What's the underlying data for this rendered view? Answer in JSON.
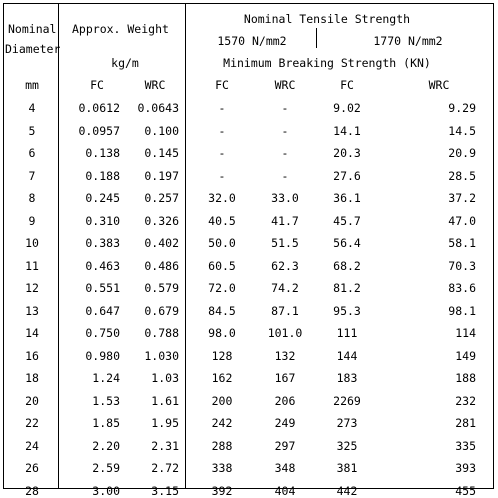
{
  "headers": {
    "nominal_line1": "Nominal",
    "diameter_line2": "Diameter",
    "mm": "mm",
    "approx_weight": "Approx. Weight",
    "kgm": "kg/m",
    "weight_fc": "FC",
    "weight_wrc": "WRC",
    "nominal_tensile": "Nominal Tensile Strength",
    "grade_1570": "1570 N/mm2",
    "grade_1770": "1770 N/mm2",
    "min_breaking": "Minimum Breaking Strength (KN)",
    "fc_1570": "FC",
    "wrc_1570": "WRC",
    "fc_1770": "FC",
    "wrc_1770": "WRC"
  },
  "rows": [
    [
      "4",
      "0.0612",
      "0.0643",
      "-",
      "-",
      "9.02",
      "9.29"
    ],
    [
      "5",
      "0.0957",
      "0.100",
      "-",
      "-",
      "14.1",
      "14.5"
    ],
    [
      "6",
      "0.138",
      "0.145",
      "-",
      "-",
      "20.3",
      "20.9"
    ],
    [
      "7",
      "0.188",
      "0.197",
      "-",
      "-",
      "27.6",
      "28.5"
    ],
    [
      "8",
      "0.245",
      "0.257",
      "32.0",
      "33.0",
      "36.1",
      "37.2"
    ],
    [
      "9",
      "0.310",
      "0.326",
      "40.5",
      "41.7",
      "45.7",
      "47.0"
    ],
    [
      "10",
      "0.383",
      "0.402",
      "50.0",
      "51.5",
      "56.4",
      "58.1"
    ],
    [
      "11",
      "0.463",
      "0.486",
      "60.5",
      "62.3",
      "68.2",
      "70.3"
    ],
    [
      "12",
      "0.551",
      "0.579",
      "72.0",
      "74.2",
      "81.2",
      "83.6"
    ],
    [
      "13",
      "0.647",
      "0.679",
      "84.5",
      "87.1",
      "95.3",
      "98.1"
    ],
    [
      "14",
      "0.750",
      "0.788",
      "98.0",
      "101.0",
      "111",
      "114"
    ],
    [
      "16",
      "0.980",
      "1.030",
      "128",
      "132",
      "144",
      "149"
    ],
    [
      "18",
      "1.24",
      "1.03",
      "162",
      "167",
      "183",
      "188"
    ],
    [
      "20",
      "1.53",
      "1.61",
      "200",
      "206",
      "2269",
      "232"
    ],
    [
      "22",
      "1.85",
      "1.95",
      "242",
      "249",
      "273",
      "281"
    ],
    [
      "24",
      "2.20",
      "2.31",
      "288",
      "297",
      "325",
      "335"
    ],
    [
      "26",
      "2.59",
      "2.72",
      "338",
      "348",
      "381",
      "393"
    ],
    [
      "28",
      "3.00",
      "3.15",
      "392",
      "404",
      "442",
      "455"
    ]
  ]
}
